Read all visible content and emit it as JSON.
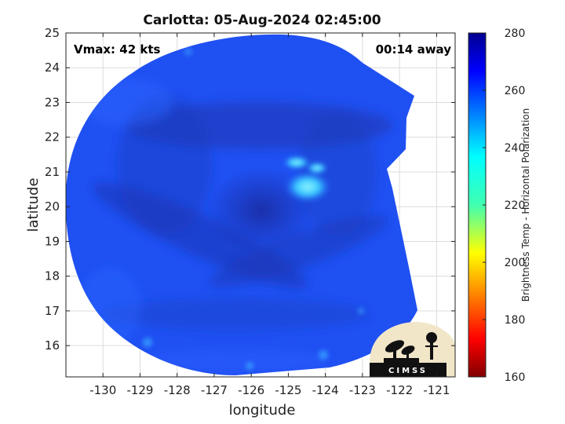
{
  "chart_data": {
    "type": "heatmap",
    "title": "Carlotta: 05-Aug-2024 02:45:00",
    "xlabel": "longitude",
    "ylabel": "latitude",
    "xlim": [
      -131,
      -120.5
    ],
    "ylim": [
      15.1,
      25
    ],
    "x_ticks": [
      -130,
      -129,
      -128,
      -127,
      -126,
      -125,
      -124,
      -123,
      -122,
      -121
    ],
    "y_ticks": [
      16,
      17,
      18,
      19,
      20,
      21,
      22,
      23,
      24,
      25
    ],
    "grid": true,
    "annotations": {
      "vmax": "Vmax: 42 kts",
      "time_away": "00:14 away"
    },
    "colorbar": {
      "label": "Brightness Temp - Horizontal Polarization",
      "min": 160,
      "max": 280,
      "ticks": [
        160,
        180,
        200,
        220,
        240,
        260,
        280
      ],
      "colormap": "jet",
      "placement": "right"
    },
    "storm_center": {
      "lon": -125.4,
      "lat": 20.0
    },
    "dominant_brightness_temp": 262,
    "warm_feature": {
      "lon": -124.5,
      "lat": 20.6,
      "brightness_temp": 240
    },
    "logo": "CIMSS"
  },
  "colors": {
    "background": "#ffffff",
    "swath_base": "#1f4ff0",
    "swath_dark": "#1a2fa0",
    "warm_feature": "#56e6ff",
    "logo_bg": "#f1e6c8",
    "logo_ink": "#111111"
  }
}
